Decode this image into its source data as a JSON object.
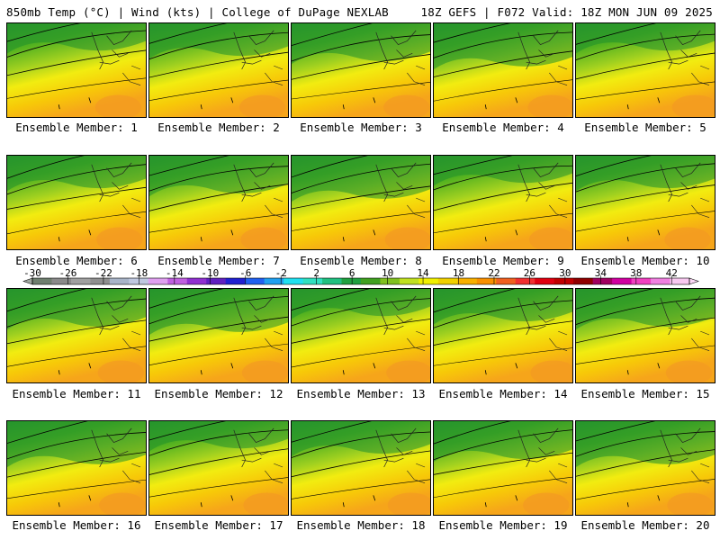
{
  "header": {
    "title_left": "850mb Temp (°C) | Wind (kts) | College of DuPage NEXLAB",
    "title_right": "18Z GEFS | F072 Valid: 18Z MON JUN 09 2025"
  },
  "panels": [
    {
      "label": "Ensemble Member: 1"
    },
    {
      "label": "Ensemble Member: 2"
    },
    {
      "label": "Ensemble Member: 3"
    },
    {
      "label": "Ensemble Member: 4"
    },
    {
      "label": "Ensemble Member: 5"
    },
    {
      "label": "Ensemble Member: 6"
    },
    {
      "label": "Ensemble Member: 7"
    },
    {
      "label": "Ensemble Member: 8"
    },
    {
      "label": "Ensemble Member: 9"
    },
    {
      "label": "Ensemble Member: 10"
    },
    {
      "label": "Ensemble Member: 11"
    },
    {
      "label": "Ensemble Member: 12"
    },
    {
      "label": "Ensemble Member: 13"
    },
    {
      "label": "Ensemble Member: 14"
    },
    {
      "label": "Ensemble Member: 15"
    },
    {
      "label": "Ensemble Member: 16"
    },
    {
      "label": "Ensemble Member: 17"
    },
    {
      "label": "Ensemble Member: 18"
    },
    {
      "label": "Ensemble Member: 19"
    },
    {
      "label": "Ensemble Member: 20"
    }
  ],
  "colorbar": {
    "ticks": [
      "-30",
      "-26",
      "-22",
      "-18",
      "-14",
      "-10",
      "-6",
      "-2",
      "2",
      "6",
      "10",
      "14",
      "18",
      "22",
      "26",
      "30",
      "34",
      "38",
      "42"
    ],
    "colors": [
      "#6f7f6f",
      "#8a8a8a",
      "#a0a0a0",
      "#8f8f8f",
      "#a8b4c8",
      "#c0c8e0",
      "#e0a0f0",
      "#c060e0",
      "#9030d0",
      "#6020c0",
      "#2020d0",
      "#2060f0",
      "#20a0f0",
      "#20e0f0",
      "#30e0c0",
      "#20c080",
      "#20a040",
      "#40a020",
      "#80c020",
      "#c0e020",
      "#f0f000",
      "#f0d000",
      "#f8b000",
      "#f89000",
      "#f06020",
      "#f03030",
      "#e00010",
      "#c00000",
      "#900000",
      "#a00060",
      "#d000a0",
      "#f040c0",
      "#f080e0",
      "#f8c8f0"
    ]
  }
}
